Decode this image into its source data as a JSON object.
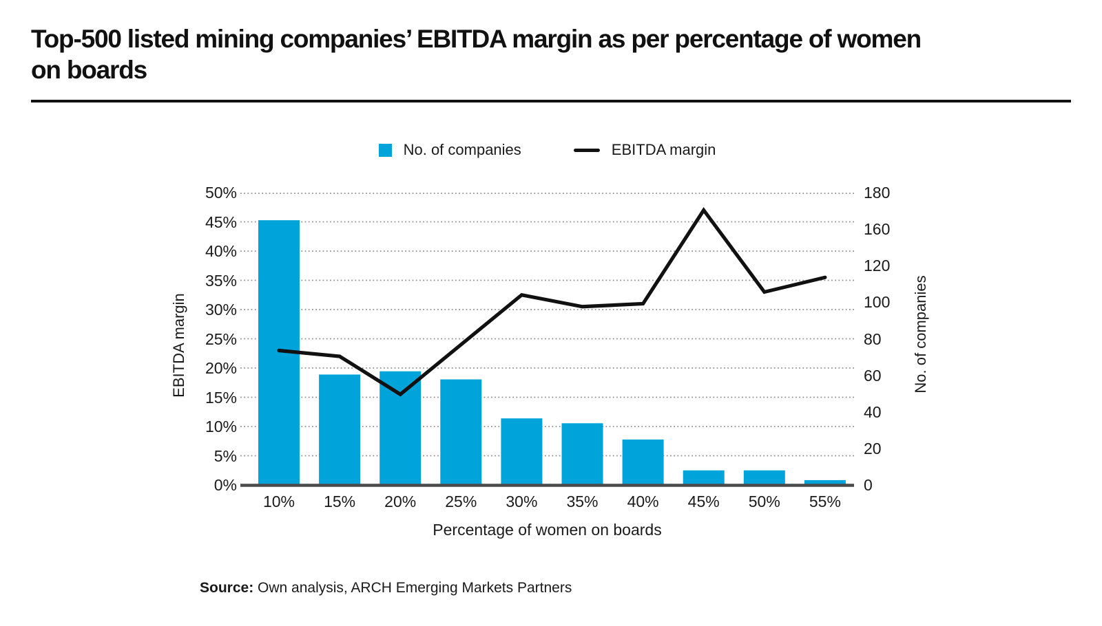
{
  "page": {
    "title": "Top-500 listed mining companies’ EBITDA margin as per percentage of women\non boards",
    "source_label": "Source:",
    "source_text": " Own analysis, ARCH Emerging Markets Partners"
  },
  "legend": {
    "bar_label": "No. of companies",
    "line_label": "EBITDA margin"
  },
  "colors": {
    "bar": "#00a4da",
    "line": "#111111",
    "grid": "#909090",
    "axis_line": "#4a4a4a",
    "text": "#1a1a1a"
  },
  "chart_data": {
    "type": "bar",
    "subtype": "bar-line-combo",
    "title": "Top-500 listed mining companies’ EBITDA margin as per percentage of women on boards",
    "categories": [
      "10%",
      "15%",
      "20%",
      "25%",
      "30%",
      "35%",
      "40%",
      "45%",
      "50%",
      "55%"
    ],
    "series": [
      {
        "name": "No. of companies",
        "type": "bar",
        "axis": "right",
        "values": [
          163,
          68,
          70,
          65,
          41,
          38,
          28,
          9,
          9,
          3
        ]
      },
      {
        "name": "EBITDA margin",
        "type": "line",
        "axis": "left",
        "values": [
          23,
          22,
          15.5,
          24,
          32.5,
          30.5,
          31,
          47,
          33,
          35.5
        ]
      }
    ],
    "left_axis": {
      "label": "EBITDA margin",
      "ticks": [
        "50%",
        "45%",
        "40%",
        "35%",
        "30%",
        "25%",
        "20%",
        "15%",
        "10%",
        "5%",
        "0%"
      ],
      "range": [
        0,
        50
      ]
    },
    "right_axis": {
      "label": "No. of companies",
      "ticks": [
        "180",
        "160",
        "120",
        "100",
        "80",
        "60",
        "40",
        "20",
        "0"
      ],
      "range": [
        0,
        180
      ]
    },
    "x_axis": {
      "label": "Percentage of women on boards"
    },
    "grid": "dotted-horizontal",
    "legend_position": "top-center",
    "xlabel": "Percentage of women on boards",
    "ylabel_left": "EBITDA margin",
    "ylabel_right": "No. of companies"
  }
}
